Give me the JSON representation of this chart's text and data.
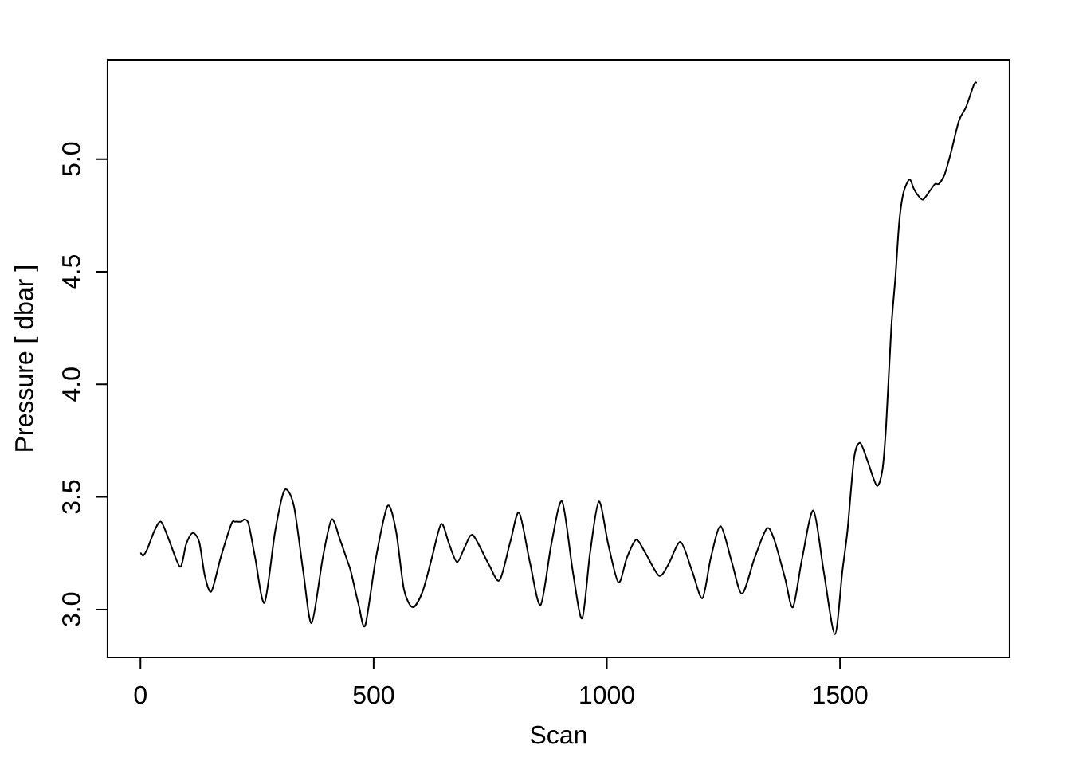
{
  "chart_data": {
    "type": "line",
    "xlabel": "Scan",
    "ylabel": "Pressure [ dbar ]",
    "x": [
      1,
      6,
      15,
      30,
      44,
      61,
      85,
      98,
      112,
      126,
      138,
      152,
      172,
      195,
      203,
      216,
      223,
      232,
      246,
      266,
      289,
      309,
      329,
      349,
      367,
      391,
      410,
      428,
      443,
      451,
      468,
      482,
      505,
      530,
      548,
      565,
      584,
      605,
      625,
      645,
      662,
      679,
      696,
      713,
      747,
      770,
      793,
      812,
      835,
      858,
      881,
      904,
      927,
      947,
      964,
      983,
      1003,
      1025,
      1043,
      1063,
      1083,
      1112,
      1132,
      1158,
      1183,
      1205,
      1223,
      1244,
      1268,
      1290,
      1317,
      1343,
      1359,
      1382,
      1399,
      1419,
      1443,
      1465,
      1489,
      1505,
      1516,
      1530,
      1543,
      1559,
      1579,
      1591,
      1599,
      1610,
      1619,
      1627,
      1636,
      1649,
      1658,
      1667,
      1678,
      1693,
      1704,
      1712,
      1724,
      1738,
      1755,
      1770,
      1787,
      1792
    ],
    "series": [
      {
        "color": "#000000",
        "values": [
          3.25,
          3.24,
          3.27,
          3.35,
          3.39,
          3.31,
          3.19,
          3.29,
          3.34,
          3.3,
          3.15,
          3.08,
          3.23,
          3.38,
          3.39,
          3.39,
          3.4,
          3.38,
          3.23,
          3.03,
          3.35,
          3.53,
          3.46,
          3.17,
          2.94,
          3.23,
          3.4,
          3.31,
          3.22,
          3.17,
          3.02,
          2.93,
          3.23,
          3.46,
          3.35,
          3.09,
          3.01,
          3.08,
          3.23,
          3.38,
          3.29,
          3.21,
          3.28,
          3.33,
          3.2,
          3.13,
          3.3,
          3.43,
          3.21,
          3.02,
          3.29,
          3.48,
          3.17,
          2.96,
          3.25,
          3.48,
          3.29,
          3.12,
          3.23,
          3.31,
          3.25,
          3.15,
          3.2,
          3.3,
          3.17,
          3.05,
          3.23,
          3.37,
          3.21,
          3.07,
          3.23,
          3.36,
          3.31,
          3.14,
          3.01,
          3.23,
          3.44,
          3.17,
          2.89,
          3.17,
          3.35,
          3.67,
          3.74,
          3.66,
          3.55,
          3.62,
          3.82,
          4.25,
          4.48,
          4.72,
          4.85,
          4.91,
          4.87,
          4.84,
          4.82,
          4.86,
          4.89,
          4.89,
          4.93,
          5.03,
          5.17,
          5.23,
          5.33,
          5.34
        ]
      }
    ],
    "xlim": [
      -70.6,
      1863.6
    ],
    "ylim": [
      2.787,
      5.441
    ],
    "xticks": [
      0,
      500,
      1000,
      1500
    ],
    "yticks": [
      {
        "value": 3,
        "label": "3.0"
      },
      {
        "value": 3.5,
        "label": "3.5"
      },
      {
        "value": 4,
        "label": "4.0"
      },
      {
        "value": 4.5,
        "label": "4.5"
      },
      {
        "value": 5,
        "label": "5.0"
      }
    ],
    "grid": false,
    "marker": "none",
    "line_style": "solid"
  }
}
